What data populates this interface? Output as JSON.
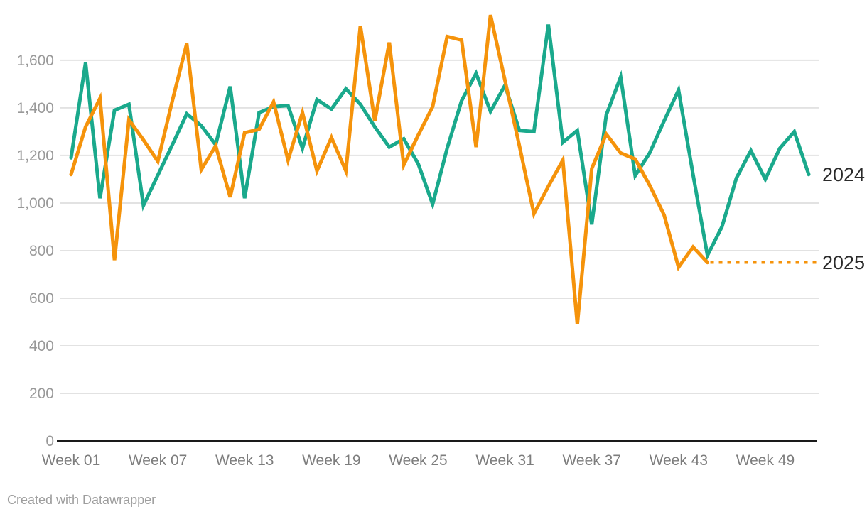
{
  "footer": {
    "credit": "Created with Datawrapper"
  },
  "series_labels": {
    "s2024": "2024",
    "s2025": "2025"
  },
  "chart_data": {
    "type": "line",
    "title": "",
    "xlabel": "",
    "ylabel": "",
    "ylim": [
      0,
      1800
    ],
    "grid": true,
    "x_unit": "week",
    "x_ticks": [
      {
        "label": "Week 01",
        "week": 1
      },
      {
        "label": "Week 07",
        "week": 7
      },
      {
        "label": "Week 13",
        "week": 13
      },
      {
        "label": "Week 19",
        "week": 19
      },
      {
        "label": "Week 25",
        "week": 25
      },
      {
        "label": "Week 31",
        "week": 31
      },
      {
        "label": "Week 37",
        "week": 37
      },
      {
        "label": "Week 43",
        "week": 43
      },
      {
        "label": "Week 49",
        "week": 49
      }
    ],
    "y_ticks": [
      {
        "label": "0",
        "value": 0
      },
      {
        "label": "200",
        "value": 200
      },
      {
        "label": "400",
        "value": 400
      },
      {
        "label": "600",
        "value": 600
      },
      {
        "label": "800",
        "value": 800
      },
      {
        "label": "1,000",
        "value": 1000
      },
      {
        "label": "1,200",
        "value": 1200
      },
      {
        "label": "1,400",
        "value": 1400
      },
      {
        "label": "1,600",
        "value": 1600
      }
    ],
    "series": [
      {
        "name": "2024",
        "color": "#1aa98c",
        "start_week": 1,
        "values": [
          1190,
          1590,
          1020,
          1390,
          1415,
          990,
          1117,
          1245,
          1375,
          1325,
          1245,
          1490,
          1020,
          1380,
          1405,
          1410,
          1230,
          1435,
          1395,
          1480,
          1415,
          1320,
          1235,
          1270,
          1165,
          995,
          1230,
          1430,
          1545,
          1385,
          1495,
          1305,
          1300,
          1750,
          1255,
          1305,
          910,
          1370,
          1530,
          1115,
          1210,
          1345,
          1475,
          1120,
          780,
          900,
          1105,
          1220,
          1100,
          1230,
          1300,
          1120
        ]
      },
      {
        "name": "2025",
        "color": "#f5930b",
        "start_week": 1,
        "values": [
          1120,
          1320,
          1440,
          760,
          1350,
          1265,
          1175,
          1430,
          1670,
          1140,
          1240,
          1025,
          1295,
          1310,
          1425,
          1180,
          1380,
          1135,
          1275,
          1135,
          1745,
          1345,
          1675,
          1160,
          1285,
          1405,
          1700,
          1685,
          1235,
          1790,
          1515,
          1240,
          955,
          1070,
          1180,
          490,
          1145,
          1290,
          1210,
          1185,
          1075,
          950,
          730,
          815,
          750
        ],
        "projection": {
          "value": 750,
          "style": "dotted"
        }
      }
    ],
    "legend_position": "right-edge-line-labels"
  },
  "colors": {
    "grid": "#e2e2e2",
    "axis": "#1a1a1a",
    "series_2024": "#1aa98c",
    "series_2025": "#f5930b"
  }
}
